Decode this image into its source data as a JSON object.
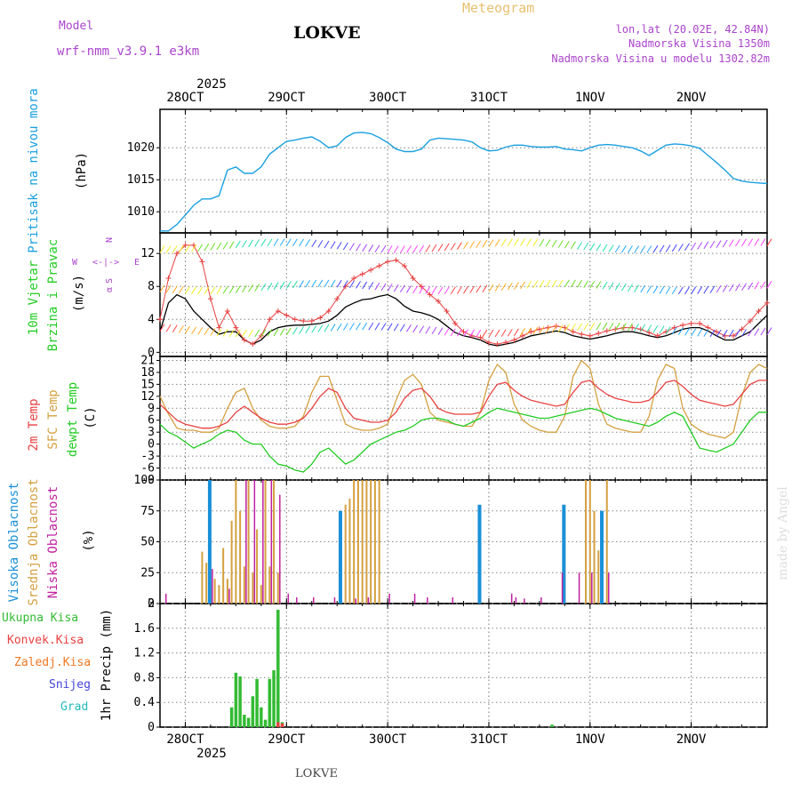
{
  "header": {
    "model_label": "Model",
    "model_name": "wrf-nmm_v3.9.1  e3km",
    "station": "LOKVE",
    "title": "Meteogram",
    "coords": "lon,lat (20.02E, 42.84N)",
    "elevation": "Nadmorska Visina 1350m",
    "model_elevation": "Nadmorska Visina u modelu 1302.82m",
    "footer_station": "LOKVE",
    "watermark": "made by Angel"
  },
  "colors": {
    "pressure": "#1aa0e0",
    "temp2m": "#e84040",
    "sfc": "#d4a040",
    "dewpt": "#22cc22",
    "high_cloud": "#1a90d8",
    "mid_cloud": "#d4a040",
    "low_cloud": "#c020a0",
    "total_precip": "#33bb33",
    "conv_precip": "#e84040",
    "freezing": "#ee7722",
    "snow": "#4444dd",
    "hail": "#22bbbb",
    "header_purple": "#aa44cc",
    "title_orange": "#e8c070"
  },
  "time_axis": {
    "year": "2025",
    "days": [
      "28OCT",
      "29OCT",
      "30OCT",
      "31OCT",
      "1NOV",
      "2NOV"
    ],
    "range_hours": [
      -6,
      138
    ]
  },
  "panels": {
    "pressure": {
      "label": "Pritisak na nivou mora",
      "unit": "(hPa)",
      "ylim": [
        1006.7,
        1026
      ],
      "ticks": [
        1010,
        1015,
        1020
      ],
      "tick_labels": [
        "1010",
        "1015",
        "1020"
      ]
    },
    "wind": {
      "label1": "10m Vjetar",
      "label2": "Brzina i Pravac",
      "unit": "(m/s)",
      "ylim": [
        -0.5,
        14.5
      ],
      "ticks": [
        0,
        4,
        8,
        12
      ],
      "tick_labels": [
        "0",
        "4",
        "8",
        "12"
      ],
      "compass": {
        "n": "N",
        "w": "W",
        "e": "E",
        "s": "S",
        "alpha": "α"
      }
    },
    "temperature": {
      "label_2m": "2m Temp",
      "label_sfc": "SFC Temp",
      "label_dew": "dewpt Temp",
      "unit": "(C)",
      "ylim": [
        -9,
        22
      ],
      "ticks": [
        -9,
        -6,
        -3,
        0,
        3,
        6,
        9,
        12,
        15,
        18,
        21
      ],
      "tick_labels": [
        "-9",
        "-6",
        "-3",
        "0",
        "3",
        "6",
        "9",
        "12",
        "15",
        "18",
        "21"
      ]
    },
    "cloud": {
      "label_high": "Visoka Oblacnost",
      "label_mid": "Srednja Oblacnost",
      "label_low": "Niska Oblacnost",
      "unit": "(%)",
      "ylim": [
        0,
        100
      ],
      "ticks": [
        0,
        25,
        50,
        75,
        100
      ],
      "tick_labels": [
        "0",
        "25",
        "50",
        "75",
        "100"
      ]
    },
    "precip": {
      "label_total": "Ukupna Kisa",
      "label_conv": "Konvek.Kisa",
      "label_freeze": "Zaledj.Kisa",
      "label_snow": "Snijeg",
      "label_hail": "Grad",
      "unit": "1hr Precip (mm)",
      "ylim": [
        0,
        2
      ],
      "ticks": [
        0,
        0.4,
        0.8,
        1.2,
        1.6,
        2
      ],
      "tick_labels": [
        "0",
        "0.4",
        "0.8",
        "1.2",
        "1.6",
        "2"
      ]
    }
  },
  "chart_data": {
    "type": "line",
    "x_unit": "hours from 28OCT 00UTC",
    "pressure": {
      "x": [
        -6,
        -4,
        -2,
        0,
        2,
        4,
        6,
        8,
        10,
        12,
        14,
        16,
        18,
        20,
        22,
        24,
        26,
        28,
        30,
        32,
        34,
        36,
        38,
        40,
        42,
        44,
        46,
        48,
        50,
        52,
        54,
        56,
        58,
        60,
        62,
        64,
        66,
        68,
        70,
        72,
        74,
        76,
        78,
        80,
        82,
        84,
        86,
        88,
        90,
        92,
        94,
        96,
        98,
        100,
        102,
        104,
        106,
        108,
        110,
        112,
        114,
        116,
        118,
        120,
        122,
        124,
        126,
        128,
        130,
        132,
        134,
        136,
        138
      ],
      "y": [
        1007,
        1007,
        1008,
        1009.5,
        1011,
        1012,
        1012,
        1012.5,
        1016.5,
        1017,
        1016,
        1016,
        1017,
        1019,
        1020,
        1021,
        1021.2,
        1021.5,
        1021.7,
        1021,
        1020,
        1020.3,
        1021.6,
        1022.3,
        1022.4,
        1022.2,
        1021.6,
        1020.8,
        1019.8,
        1019.4,
        1019.4,
        1019.8,
        1021.2,
        1021.5,
        1021.4,
        1021.3,
        1021.2,
        1020.9,
        1020,
        1019.5,
        1019.6,
        1020.1,
        1020.4,
        1020.4,
        1020.2,
        1020.1,
        1020.1,
        1020.2,
        1019.8,
        1019.7,
        1019.5,
        1020,
        1020.4,
        1020.5,
        1020.4,
        1020.2,
        1020,
        1019.5,
        1018.8,
        1019.6,
        1020.4,
        1020.6,
        1020.5,
        1020.3,
        1019.9,
        1018.8,
        1017.7,
        1016.5,
        1015.2,
        1014.8,
        1014.6,
        1014.5,
        1014.4
      ]
    },
    "wind_speed": {
      "x": [
        -6,
        -4,
        -2,
        0,
        2,
        4,
        6,
        8,
        10,
        12,
        14,
        16,
        18,
        20,
        22,
        24,
        26,
        28,
        30,
        32,
        34,
        36,
        38,
        40,
        42,
        44,
        46,
        48,
        50,
        52,
        54,
        56,
        58,
        60,
        62,
        64,
        66,
        68,
        70,
        72,
        74,
        76,
        78,
        80,
        82,
        84,
        86,
        88,
        90,
        92,
        94,
        96,
        98,
        100,
        102,
        104,
        106,
        108,
        110,
        112,
        114,
        116,
        118,
        120,
        122,
        124,
        126,
        128,
        130,
        132,
        134,
        136,
        138
      ],
      "y": [
        2.5,
        6,
        7,
        6.5,
        5,
        4,
        3,
        2.2,
        2.5,
        2.5,
        1.5,
        1,
        1.5,
        2.5,
        3,
        3.2,
        3.3,
        3.3,
        3.4,
        3.5,
        3.8,
        4.5,
        5.5,
        6,
        6.4,
        6.5,
        6.8,
        7,
        6.5,
        5.6,
        5,
        4.8,
        4.5,
        4,
        3.2,
        2.4,
        2,
        1.8,
        1.5,
        1,
        0.8,
        1,
        1.2,
        1.6,
        2,
        2.2,
        2.4,
        2.6,
        2.4,
        2,
        1.8,
        1.6,
        1.8,
        2,
        2.3,
        2.5,
        2.5,
        2.3,
        2,
        1.8,
        2,
        2.4,
        2.8,
        3,
        3,
        2.6,
        2,
        1.5,
        1.5,
        2,
        2.5,
        3.5,
        4.5
      ]
    },
    "wind_gust": {
      "x": [
        -6,
        -4,
        -2,
        0,
        2,
        4,
        6,
        8,
        10,
        12,
        14,
        16,
        18,
        20,
        22,
        24,
        26,
        28,
        30,
        32,
        34,
        36,
        38,
        40,
        42,
        44,
        46,
        48,
        50,
        52,
        54,
        56,
        58,
        60,
        62,
        64,
        66,
        68,
        70,
        72,
        74,
        76,
        78,
        80,
        82,
        84,
        86,
        88,
        90,
        92,
        94,
        96,
        98,
        100,
        102,
        104,
        106,
        108,
        110,
        112,
        114,
        116,
        118,
        120,
        122,
        124,
        126,
        128,
        130,
        132,
        134,
        136,
        138
      ],
      "y": [
        4,
        9,
        12,
        13,
        13,
        11,
        6.5,
        3,
        5,
        3,
        1.5,
        1,
        2,
        4,
        5,
        4.5,
        4,
        3.8,
        3.8,
        4.2,
        5,
        6.5,
        8,
        9,
        9.5,
        10,
        10.5,
        11,
        11.2,
        10.5,
        9,
        8,
        7,
        6.2,
        5,
        3.5,
        2.5,
        2,
        1.8,
        1.2,
        1,
        1.2,
        1.5,
        2,
        2.5,
        2.8,
        3,
        3.2,
        3,
        2.5,
        2.2,
        2,
        2.3,
        2.6,
        2.8,
        3,
        3,
        2.8,
        2.4,
        2,
        2.5,
        3,
        3.3,
        3.5,
        3.5,
        3,
        2.5,
        2,
        2,
        2.8,
        3.8,
        5,
        6
      ]
    },
    "temp_2m": {
      "x": [
        -6,
        -4,
        -2,
        0,
        2,
        4,
        6,
        8,
        10,
        12,
        14,
        16,
        18,
        20,
        22,
        24,
        26,
        28,
        30,
        32,
        34,
        36,
        38,
        40,
        42,
        44,
        46,
        48,
        50,
        52,
        54,
        56,
        58,
        60,
        62,
        64,
        66,
        68,
        70,
        72,
        74,
        76,
        78,
        80,
        82,
        84,
        86,
        88,
        90,
        92,
        94,
        96,
        98,
        100,
        102,
        104,
        106,
        108,
        110,
        112,
        114,
        116,
        118,
        120,
        122,
        124,
        126,
        128,
        130,
        132,
        134,
        136,
        138
      ],
      "y": [
        10,
        8,
        6,
        5,
        4.5,
        4,
        4,
        4.5,
        5.5,
        8,
        9.5,
        8,
        6.5,
        5.5,
        5,
        5,
        5.5,
        6.5,
        9,
        12,
        14,
        13,
        9,
        6.5,
        6,
        5.5,
        5.5,
        6,
        8,
        11.5,
        13.5,
        14,
        12,
        9,
        8,
        7.5,
        7.5,
        7.5,
        8,
        12,
        15,
        15.5,
        13.5,
        12,
        11,
        10.5,
        10,
        9.5,
        10,
        13,
        15.5,
        16,
        14,
        12.5,
        11.5,
        11,
        10.5,
        10.5,
        11,
        13,
        15.5,
        16,
        14.5,
        12.5,
        11,
        10.5,
        10,
        9.5,
        10,
        12.5,
        15,
        16,
        16
      ]
    },
    "temp_sfc": {
      "x": [
        -6,
        -4,
        -2,
        0,
        2,
        4,
        6,
        8,
        10,
        12,
        14,
        16,
        18,
        20,
        22,
        24,
        26,
        28,
        30,
        32,
        34,
        36,
        38,
        40,
        42,
        44,
        46,
        48,
        50,
        52,
        54,
        56,
        58,
        60,
        62,
        64,
        66,
        68,
        70,
        72,
        74,
        76,
        78,
        80,
        82,
        84,
        86,
        88,
        90,
        92,
        94,
        96,
        98,
        100,
        102,
        104,
        106,
        108,
        110,
        112,
        114,
        116,
        118,
        120,
        122,
        124,
        126,
        128,
        130,
        132,
        134,
        136,
        138
      ],
      "y": [
        12,
        7.5,
        4,
        3.5,
        3.5,
        3,
        3,
        4,
        9,
        13,
        14,
        9,
        6,
        4.5,
        4,
        4,
        4.5,
        7,
        13,
        17,
        17,
        11,
        5,
        4,
        3.5,
        3.5,
        4,
        5,
        11,
        16,
        17.5,
        15,
        8,
        6,
        5.5,
        5,
        4.5,
        4.5,
        8,
        16,
        20,
        18,
        10,
        6,
        4.5,
        3.5,
        3,
        3,
        7,
        17,
        21,
        19,
        10,
        5,
        4,
        3.5,
        3,
        3,
        7,
        16,
        20,
        19,
        9,
        5,
        3.5,
        2.5,
        2,
        1.5,
        3,
        12,
        18,
        20,
        19
      ]
    },
    "dewpoint": {
      "x": [
        -6,
        -4,
        -2,
        0,
        2,
        4,
        6,
        8,
        10,
        12,
        14,
        16,
        18,
        20,
        22,
        24,
        26,
        28,
        30,
        32,
        34,
        36,
        38,
        40,
        42,
        44,
        46,
        48,
        50,
        52,
        54,
        56,
        58,
        60,
        62,
        64,
        66,
        68,
        70,
        72,
        74,
        76,
        78,
        80,
        82,
        84,
        86,
        88,
        90,
        92,
        94,
        96,
        98,
        100,
        102,
        104,
        106,
        108,
        110,
        112,
        114,
        116,
        118,
        120,
        122,
        124,
        126,
        128,
        130,
        132,
        134,
        136,
        138
      ],
      "y": [
        5,
        3,
        2,
        0.5,
        -1,
        0,
        1,
        2.5,
        3.5,
        3,
        1,
        0,
        0,
        -3,
        -5,
        -5.5,
        -6.5,
        -7,
        -5,
        -2,
        -1,
        -3,
        -5,
        -4,
        -2,
        0,
        1,
        2,
        3,
        3.5,
        4.5,
        6,
        6.5,
        6.5,
        6,
        5,
        4.5,
        5.5,
        6.5,
        8,
        9,
        8.5,
        8,
        7.5,
        7,
        6.5,
        6.5,
        7,
        7.5,
        8,
        8.5,
        9,
        8.5,
        7.5,
        6.5,
        6,
        5.5,
        5,
        4.5,
        5.5,
        7,
        8,
        7,
        3,
        -1,
        -1.5,
        -2,
        -1,
        0,
        3,
        6,
        8,
        8
      ]
    },
    "cloud": {
      "high": {
        "x": [
          6,
          37,
          70,
          90,
          99
        ],
        "values": [
          100,
          75,
          80,
          80,
          75
        ]
      },
      "mid": {
        "x": [
          4,
          5,
          6,
          7,
          8,
          9,
          10,
          11,
          12,
          13,
          14,
          15,
          16,
          17,
          18,
          19,
          20,
          21,
          22,
          37,
          38,
          39,
          40,
          41,
          42,
          43,
          44,
          45,
          46,
          70,
          90,
          95,
          96,
          97,
          98,
          99,
          100
        ],
        "values": [
          42,
          33,
          25,
          20,
          15,
          45,
          20,
          67,
          100,
          75,
          30,
          100,
          25,
          60,
          15,
          100,
          30,
          100,
          25,
          33,
          80,
          85,
          100,
          100,
          100,
          100,
          100,
          100,
          100,
          17,
          75,
          100,
          100,
          75,
          43,
          75,
          100
        ]
      },
      "low": {
        "x": [
          -5,
          6,
          10,
          14,
          16,
          18,
          20,
          22,
          24,
          26,
          30,
          35,
          40,
          43,
          48,
          54,
          57,
          63,
          77,
          78,
          80,
          84,
          89,
          93,
          96,
          100
        ],
        "values": [
          8,
          28,
          12,
          100,
          100,
          100,
          100,
          88,
          8,
          5,
          5,
          5,
          4,
          5,
          8,
          8,
          5,
          5,
          8,
          5,
          4,
          5,
          25,
          25,
          25,
          25
        ]
      }
    },
    "precip": {
      "total": {
        "x": [
          11,
          12,
          13,
          14,
          15,
          16,
          17,
          18,
          19,
          20,
          21,
          22,
          23,
          87
        ],
        "values": [
          0.32,
          0.88,
          0.82,
          0.2,
          0.15,
          0.5,
          0.78,
          0.32,
          0.12,
          0.78,
          0.92,
          1.9,
          0.08,
          0.04
        ]
      },
      "convective": {
        "x": [
          22,
          23
        ],
        "values": [
          0.08,
          0.06
        ]
      }
    }
  }
}
